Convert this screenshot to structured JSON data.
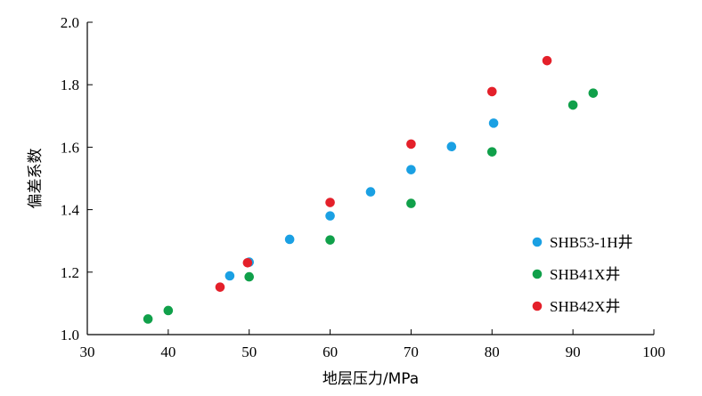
{
  "chart_data": {
    "type": "scatter",
    "xlabel": "地层压力/MPa",
    "ylabel": "偏差系数",
    "xlim": [
      30,
      100
    ],
    "ylim": [
      1.0,
      2.0
    ],
    "xticks": [
      30,
      40,
      50,
      60,
      70,
      80,
      90,
      100
    ],
    "yticks": [
      "1.0",
      "1.2",
      "1.4",
      "1.6",
      "1.8",
      "2.0"
    ],
    "grid": false,
    "legend": "right",
    "series": [
      {
        "name": "SHB53-1H井",
        "color": "#1aa0e3",
        "points": [
          [
            47.6,
            1.188
          ],
          [
            50.0,
            1.232
          ],
          [
            55.0,
            1.305
          ],
          [
            60.0,
            1.38
          ],
          [
            65.0,
            1.457
          ],
          [
            70.0,
            1.528
          ],
          [
            75.0,
            1.602
          ],
          [
            80.2,
            1.677
          ]
        ]
      },
      {
        "name": "SHB41X井",
        "color": "#10a04a",
        "points": [
          [
            37.5,
            1.05
          ],
          [
            40.0,
            1.077
          ],
          [
            50.0,
            1.185
          ],
          [
            60.0,
            1.303
          ],
          [
            70.0,
            1.42
          ],
          [
            80.0,
            1.585
          ],
          [
            90.0,
            1.735
          ],
          [
            92.5,
            1.773
          ]
        ]
      },
      {
        "name": "SHB42X井",
        "color": "#e4202a",
        "points": [
          [
            46.4,
            1.152
          ],
          [
            49.8,
            1.23
          ],
          [
            60.0,
            1.423
          ],
          [
            70.0,
            1.61
          ],
          [
            80.0,
            1.778
          ],
          [
            86.8,
            1.877
          ]
        ]
      }
    ]
  }
}
